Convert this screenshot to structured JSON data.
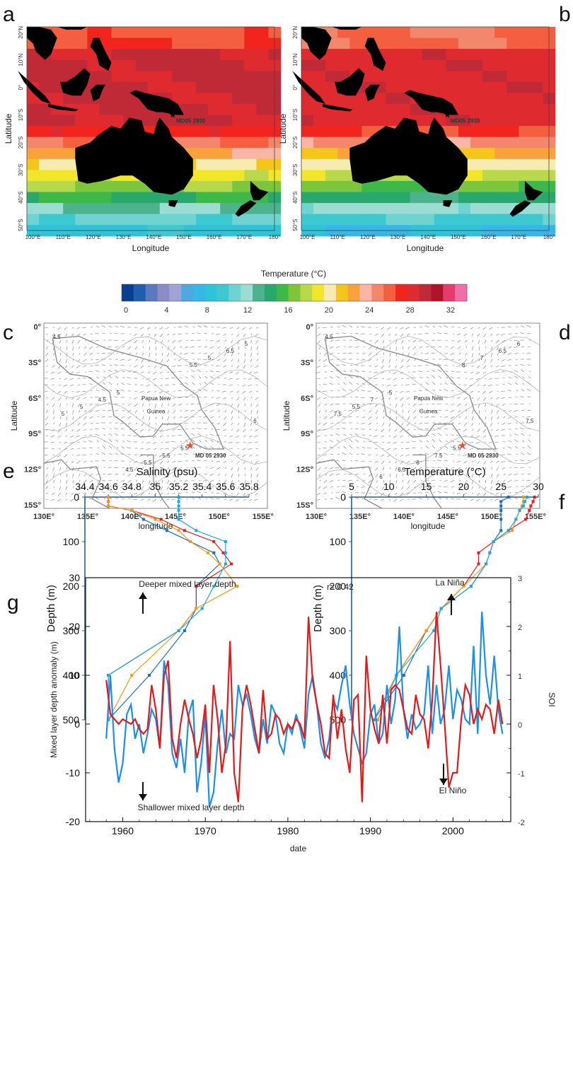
{
  "panels": {
    "a": "a",
    "b": "b",
    "c": "c",
    "d": "d",
    "e": "e",
    "f": "f",
    "g": "g"
  },
  "maps_ab": {
    "lat_ticks": [
      "20°N",
      "10°N",
      "0°",
      "10°S",
      "20°S",
      "30°S",
      "40°S",
      "50°S"
    ],
    "lon_ticks": [
      "100°E",
      "110°E",
      "120°E",
      "130°E",
      "140°E",
      "150°E",
      "160°E",
      "170°E",
      "180°"
    ],
    "xlabel": "Longitude",
    "ylabel": "Latitude",
    "site_label": "MD05 2930"
  },
  "colorbar": {
    "title": "Temperature (°C)",
    "ticks": [
      "0",
      "4",
      "8",
      "12",
      "16",
      "20",
      "24",
      "28",
      "32"
    ],
    "colors": [
      "#0a3f8f",
      "#1f5fb0",
      "#5a79bf",
      "#8a8bc7",
      "#9fa3d6",
      "#4fa8de",
      "#35b8e8",
      "#2ec4d8",
      "#3dc9cf",
      "#6fd3d1",
      "#9bdcd3",
      "#4db38f",
      "#29a86c",
      "#3fb84a",
      "#7dc63b",
      "#b9d84a",
      "#f2e62a",
      "#f7ecb0",
      "#f5c51a",
      "#f7a23a",
      "#f9b6a6",
      "#f2876c",
      "#f4603f",
      "#f1251e",
      "#df2a30",
      "#c02a36",
      "#b0122a",
      "#e63b6c",
      "#f06fa8"
    ]
  },
  "maps_cd": {
    "lat_ticks": [
      "0°",
      "3S°",
      "6S°",
      "9S°",
      "12S°",
      "15S°"
    ],
    "lon_ticks": [
      "130E°",
      "135E°",
      "140E°",
      "145E°",
      "150E°",
      "155E°"
    ],
    "xlabel": "longitude",
    "ylabel": "Latitude",
    "land_label_1": "Papua New",
    "land_label_2": "Guinea",
    "site_label": "MD 05 2930",
    "c_contours": [
      "4.5",
      "5",
      "5.5",
      "5",
      "4.5",
      "5.5",
      "6.5",
      "5",
      "5.5",
      "5",
      "5",
      "4.5",
      "5.5",
      "6"
    ],
    "d_contours": [
      "4.5",
      "5",
      "5.5",
      "6",
      "7",
      "7.5",
      "6.5",
      "5.5",
      "6",
      "7",
      "7.5",
      "6.5",
      "8",
      "7.5",
      "6"
    ]
  },
  "chart_data": [
    {
      "id": "e",
      "type": "line",
      "xlabel": "Salinity (psu)",
      "ylabel": "Depth (m)",
      "xlim": [
        34.4,
        35.8
      ],
      "ylim": [
        0,
        500
      ],
      "xticks": [
        "34.4",
        "34.6",
        "34.8",
        "35",
        "35.2",
        "35.4",
        "35.6",
        "35.8"
      ],
      "yticks": [
        "0",
        "100",
        "200",
        "300",
        "400",
        "500"
      ],
      "colors": [
        "#1d6cc7",
        "#e02020",
        "#f39a1d",
        "#20a8dc"
      ],
      "series": [
        {
          "depth": [
            0,
            10,
            20,
            30,
            50,
            75,
            100,
            125,
            150,
            200,
            250,
            300,
            400,
            500
          ],
          "values": [
            34.6,
            34.6,
            34.6,
            34.8,
            34.9,
            35.1,
            35.3,
            35.5,
            35.55,
            35.35,
            35.35,
            35.25,
            34.95,
            34.6
          ]
        },
        {
          "depth": [
            0,
            10,
            20,
            30,
            50,
            75,
            100,
            125,
            150,
            200,
            250,
            300,
            400,
            500
          ],
          "values": [
            34.6,
            34.6,
            34.6,
            34.8,
            35.05,
            35.25,
            35.5,
            35.58,
            35.65,
            35.35,
            35.35,
            35.2,
            34.6,
            34.6
          ]
        },
        {
          "depth": [
            0,
            10,
            20,
            30,
            50,
            75,
            100,
            125,
            150,
            200,
            250,
            300,
            400,
            500
          ],
          "values": [
            34.6,
            34.6,
            34.6,
            34.8,
            35.0,
            35.2,
            35.3,
            35.45,
            35.55,
            35.7,
            35.35,
            35.2,
            34.8,
            34.6
          ]
        },
        {
          "depth": [
            0,
            10,
            20,
            30,
            50,
            75,
            100,
            125,
            150,
            200,
            250,
            300,
            400,
            500
          ],
          "values": [
            35.2,
            35.2,
            35.2,
            35.2,
            35.2,
            35.35,
            35.6,
            35.6,
            35.6,
            35.5,
            35.4,
            35.2,
            34.6,
            34.6
          ]
        }
      ]
    },
    {
      "id": "f",
      "type": "line",
      "xlabel": "Temperature (°C)",
      "ylabel": "Depth (m)",
      "xlim": [
        5,
        30
      ],
      "ylim": [
        0,
        500
      ],
      "xticks": [
        "5",
        "10",
        "15",
        "20",
        "25",
        "30"
      ],
      "yticks": [
        "0",
        "100",
        "200",
        "300",
        "400",
        "500"
      ],
      "colors": [
        "#1d6cc7",
        "#e02020",
        "#f39a1d",
        "#20a8dc"
      ],
      "series": [
        {
          "depth": [
            0,
            10,
            20,
            30,
            50,
            75,
            100,
            125,
            150,
            200,
            250,
            300,
            400,
            500
          ],
          "values": [
            26,
            25,
            25,
            25,
            25,
            25,
            24,
            23.5,
            23,
            21,
            17,
            15,
            12,
            8
          ]
        },
        {
          "depth": [
            0,
            10,
            20,
            30,
            50,
            75,
            100,
            125,
            150,
            200,
            250,
            300,
            400,
            500
          ],
          "values": [
            29.5,
            29.3,
            29,
            28.8,
            28.3,
            26,
            24,
            22,
            22,
            20,
            17,
            15,
            11,
            8.5
          ]
        },
        {
          "depth": [
            0,
            10,
            20,
            30,
            50,
            75,
            100,
            125,
            150,
            200,
            250,
            300,
            400,
            500
          ],
          "values": [
            28,
            28,
            27.8,
            27.5,
            27,
            26.5,
            24,
            23.5,
            23,
            20,
            17,
            15,
            11,
            8.5
          ]
        },
        {
          "depth": [
            0,
            10,
            20,
            30,
            50,
            75,
            100,
            125,
            150,
            200,
            250,
            300,
            400,
            500
          ],
          "values": [
            28.5,
            28.2,
            28,
            27.5,
            27,
            26,
            24,
            23.5,
            23,
            21,
            17,
            16,
            11,
            8
          ]
        }
      ]
    },
    {
      "id": "g",
      "type": "line",
      "xlabel": "date",
      "ylabel": "Mixed layer depth anomaly (m)",
      "y2label": "SOI",
      "xlim": [
        1955.5,
        2007
      ],
      "ylim": [
        -20,
        30
      ],
      "y2lim": [
        -2,
        3
      ],
      "xticks": [
        "1960",
        "1970",
        "1980",
        "1990",
        "2000"
      ],
      "yticks": [
        "-20",
        "-10",
        "0",
        "10",
        "20",
        "30"
      ],
      "y2ticks": [
        "-2",
        "-1",
        "0",
        "1",
        "2",
        "3"
      ],
      "annotations": {
        "r": "r= 0.42",
        "deeper": "Deeper mixed layer depth",
        "shallower": "Shallower mixed layer depth",
        "la_nina": "La Niña",
        "el_nino": "El Niño"
      },
      "series": [
        {
          "name": "Mixed layer depth anomaly (m)",
          "color": "#1e8fe6",
          "x": [
            1958,
            1958.5,
            1959,
            1959.5,
            1960,
            1960.5,
            1961,
            1961.5,
            1962,
            1962.5,
            1963,
            1963.5,
            1964,
            1964.5,
            1965,
            1965.5,
            1966,
            1966.5,
            1967,
            1967.5,
            1968,
            1968.5,
            1969,
            1969.5,
            1970,
            1970.5,
            1971,
            1971.5,
            1972,
            1972.5,
            1973,
            1973.5,
            1974,
            1974.5,
            1975,
            1975.5,
            1976,
            1976.5,
            1977,
            1977.5,
            1978,
            1978.5,
            1979,
            1979.5,
            1980,
            1980.5,
            1981,
            1981.5,
            1982,
            1982.5,
            1983,
            1983.5,
            1984,
            1984.5,
            1985,
            1985.5,
            1986,
            1986.5,
            1987,
            1987.5,
            1988,
            1988.5,
            1989,
            1989.5,
            1990,
            1990.5,
            1991,
            1991.5,
            1992,
            1992.5,
            1993,
            1993.5,
            1994,
            1994.5,
            1995,
            1995.5,
            1996,
            1996.5,
            1997,
            1997.5,
            1998,
            1998.5,
            1999,
            1999.5,
            2000,
            2000.5,
            2001,
            2001.5,
            2002,
            2002.5,
            2003,
            2003.5,
            2004,
            2004.5,
            2005,
            2005.5,
            2006
          ],
          "values": [
            -3,
            10,
            -5,
            -12,
            -8,
            2,
            4,
            -3,
            0,
            -6,
            -2,
            3,
            1,
            -5,
            13,
            8,
            -6,
            -9,
            -3,
            -10,
            2,
            5,
            -14,
            -8,
            2,
            -17,
            -14,
            -4,
            3,
            -6,
            -2,
            -3,
            8,
            4,
            6,
            2,
            -3,
            -6,
            1,
            -4,
            4,
            2,
            -4,
            -6,
            0,
            -2,
            2,
            -1,
            -5,
            6,
            10,
            4,
            -4,
            -7,
            -3,
            5,
            3,
            8,
            12,
            4,
            -2,
            -5,
            -8,
            -6,
            2,
            4,
            -4,
            -2,
            8,
            0,
            5,
            20,
            3,
            -3,
            2,
            -1,
            0,
            2,
            12,
            -2,
            8,
            0,
            3,
            12,
            1,
            7,
            5,
            1,
            0,
            16,
            -2,
            23,
            10,
            4,
            14,
            3,
            -2
          ]
        },
        {
          "name": "SOI",
          "color": "#e21a1a",
          "x": [
            1958,
            1958.5,
            1959,
            1959.5,
            1960,
            1960.5,
            1961,
            1961.5,
            1962,
            1962.5,
            1963,
            1963.5,
            1964,
            1964.5,
            1965,
            1965.5,
            1966,
            1966.5,
            1967,
            1967.5,
            1968,
            1968.5,
            1969,
            1969.5,
            1970,
            1970.5,
            1971,
            1971.5,
            1972,
            1972.5,
            1973,
            1973.5,
            1974,
            1974.5,
            1975,
            1975.5,
            1976,
            1976.5,
            1977,
            1977.5,
            1978,
            1978.5,
            1979,
            1979.5,
            1980,
            1980.5,
            1981,
            1981.5,
            1982,
            1982.5,
            1983,
            1983.5,
            1984,
            1984.5,
            1985,
            1985.5,
            1986,
            1986.5,
            1987,
            1987.5,
            1988,
            1988.5,
            1989,
            1989.5,
            1990,
            1990.5,
            1991,
            1991.5,
            1992,
            1992.5,
            1993,
            1993.5,
            1994,
            1994.5,
            1995,
            1995.5,
            1996,
            1996.5,
            1997,
            1997.5,
            1998,
            1998.5,
            1999,
            1999.5,
            2000,
            2000.5,
            2001,
            2001.5,
            2002,
            2002.5,
            2003,
            2003.5,
            2004,
            2004.5,
            2005,
            2005.5,
            2006
          ],
          "values": [
            0.9,
            0.2,
            0.1,
            0.0,
            0.1,
            0.05,
            0.0,
            0.1,
            -0.1,
            -0.2,
            -0.1,
            0.8,
            0.3,
            -0.5,
            1.0,
            1.3,
            -0.3,
            -0.7,
            0.0,
            0.5,
            0.1,
            -0.2,
            -0.7,
            -0.3,
            0.4,
            -1.0,
            0.8,
            0.1,
            -1.0,
            -0.4,
            1.7,
            -1.0,
            -1.6,
            0.3,
            0.8,
            0.4,
            -0.1,
            -0.6,
            0.7,
            -0.3,
            -0.2,
            0.2,
            0.1,
            -0.2,
            0.0,
            -0.1,
            0.1,
            0.0,
            -0.3,
            2.2,
            0.9,
            0.4,
            0.0,
            -0.6,
            -0.7,
            0.6,
            -0.3,
            0.3,
            -0.5,
            -1.0,
            0.5,
            0.6,
            -1.6,
            1.4,
            0.3,
            -0.1,
            -0.4,
            0.6,
            -0.4,
            0.7,
            0.8,
            0.7,
            0.3,
            -0.1,
            -0.2,
            0.6,
            0.2,
            0.1,
            -0.5,
            0.5,
            2.3,
            1.2,
            0.0,
            -1.3,
            -1.0,
            -1.0,
            0.1,
            0.8,
            0.6,
            0.0,
            0.3,
            0.1,
            0.4,
            0.3,
            -0.2,
            0.5,
            0.0
          ]
        }
      ]
    }
  ]
}
